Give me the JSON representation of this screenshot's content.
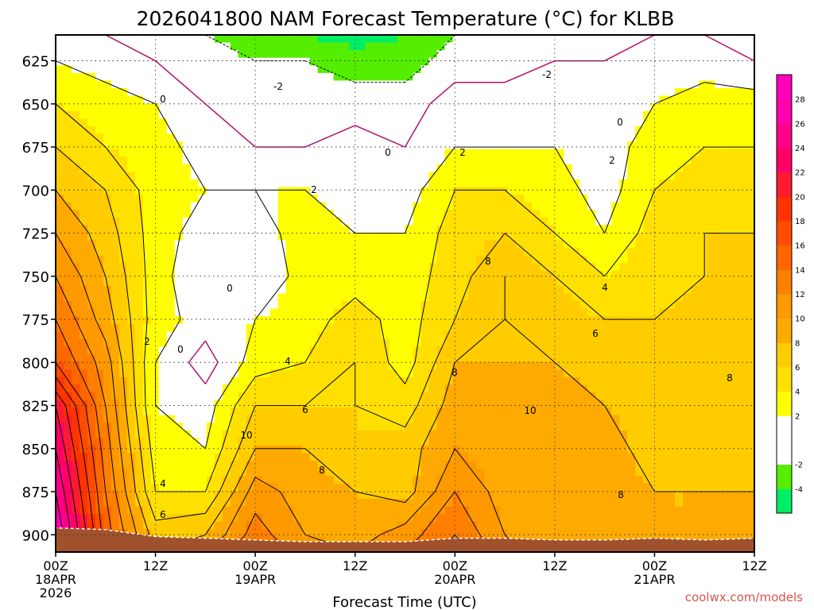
{
  "chart_data": {
    "type": "heatmap",
    "title": "2026041800 NAM Forecast Temperature (°C) for KLBB",
    "xlabel": "Forecast Time (UTC)",
    "ylabel": "",
    "ylim": [
      910,
      610
    ],
    "grid": true,
    "y_ticks": [
      "625",
      "650",
      "675",
      "700",
      "725",
      "750",
      "775",
      "800",
      "825",
      "850",
      "875",
      "900"
    ],
    "x_ticks": [
      {
        "hour": 0,
        "l1": "00Z",
        "l2": "18APR",
        "l3": "2026"
      },
      {
        "hour": 12,
        "l1": "12Z",
        "l2": "",
        "l3": ""
      },
      {
        "hour": 24,
        "l1": "00Z",
        "l2": "19APR",
        "l3": ""
      },
      {
        "hour": 36,
        "l1": "12Z",
        "l2": "",
        "l3": ""
      },
      {
        "hour": 48,
        "l1": "00Z",
        "l2": "20APR",
        "l3": ""
      },
      {
        "hour": 60,
        "l1": "12Z",
        "l2": "",
        "l3": ""
      },
      {
        "hour": 72,
        "l1": "00Z",
        "l2": "21APR",
        "l3": ""
      },
      {
        "hour": 84,
        "l1": "12Z",
        "l2": "",
        "l3": ""
      }
    ],
    "xlim": [
      0,
      84
    ],
    "colorbar": {
      "levels": [
        -6,
        -4,
        -2,
        0,
        2,
        4,
        6,
        8,
        10,
        12,
        14,
        16,
        18,
        20,
        22,
        24,
        26,
        28,
        30
      ],
      "labels": [
        "-4",
        "-2",
        "2",
        "4",
        "6",
        "8",
        "10",
        "12",
        "14",
        "16",
        "18",
        "20",
        "22",
        "24",
        "26",
        "28"
      ],
      "colors": [
        "#00ee66",
        "#55ee00",
        "#ffffff",
        "#ffffff",
        "#ffff00",
        "#ffe000",
        "#ffcc00",
        "#ffaa00",
        "#ff9900",
        "#ff7f00",
        "#ff6600",
        "#ff4c00",
        "#ff3300",
        "#ff1a33",
        "#ff0066",
        "#ff0088",
        "#ff00aa",
        "#ff00bb"
      ]
    },
    "hours": [
      0,
      6,
      12,
      18,
      24,
      30,
      36,
      42,
      48,
      54,
      60,
      66,
      72,
      78,
      84
    ],
    "levels_hpa": [
      610,
      625,
      650,
      675,
      700,
      725,
      750,
      775,
      800,
      825,
      850,
      875,
      900,
      910
    ],
    "temperature_c": [
      [
        1,
        0,
        -1,
        -2,
        -3,
        -4,
        -5,
        -4,
        -2,
        -2,
        -1,
        -1,
        0,
        0,
        -1
      ],
      [
        2,
        1,
        0,
        -1,
        -2,
        -2,
        -3,
        -3,
        -1,
        -1,
        0,
        0,
        1,
        1,
        0
      ],
      [
        4,
        3,
        2,
        0,
        -1,
        -1,
        -1,
        -1,
        1,
        1,
        1,
        1,
        2,
        3,
        3
      ],
      [
        6,
        4,
        3,
        1,
        0,
        0,
        1,
        0,
        2,
        2,
        2,
        1,
        3,
        4,
        4
      ],
      [
        8,
        6,
        3,
        2,
        2,
        2,
        1,
        1,
        4,
        4,
        3,
        1,
        4,
        5,
        5
      ],
      [
        10,
        7,
        3,
        1,
        1,
        3,
        2,
        2,
        5,
        6,
        4,
        2,
        5,
        6,
        6
      ],
      [
        12,
        8,
        3,
        0,
        0,
        3,
        3,
        3,
        5,
        8,
        6,
        4,
        5,
        6,
        7
      ],
      [
        14,
        9,
        3,
        1,
        2,
        3,
        5,
        3,
        6,
        8,
        7,
        6,
        6,
        7,
        7
      ],
      [
        16,
        11,
        2,
        -1,
        3,
        4,
        6,
        3,
        8,
        8,
        8,
        7,
        7,
        7,
        8
      ],
      [
        22,
        12,
        2,
        1,
        6,
        6,
        6,
        5,
        9,
        9,
        9,
        8,
        7,
        7,
        8
      ],
      [
        24,
        13,
        3,
        2,
        8,
        8,
        6,
        7,
        10,
        9,
        10,
        9,
        7,
        7,
        7
      ],
      [
        26,
        14,
        4,
        4,
        11,
        9,
        8,
        7,
        12,
        9,
        9,
        9,
        8,
        8,
        8
      ],
      [
        28,
        15,
        7,
        8,
        13,
        10,
        9,
        11,
        14,
        10,
        8,
        8,
        8,
        8,
        9
      ],
      [
        28,
        15,
        8,
        10,
        14,
        11,
        10,
        12,
        15,
        11,
        8,
        8,
        8,
        8,
        9
      ]
    ],
    "terrain_pressure_hpa": [
      896,
      897,
      901,
      902,
      903,
      904,
      904,
      904,
      902,
      902,
      903,
      903,
      902,
      903,
      902
    ],
    "annotations": [
      "-2",
      "-2",
      "0",
      "0",
      "0",
      "0",
      "0",
      "2",
      "2",
      "2",
      "2",
      "4",
      "4",
      "4",
      "6",
      "6",
      "6",
      "8",
      "8",
      "8",
      "8",
      "8",
      "10",
      "10"
    ],
    "credit": "coolwx.com/models"
  }
}
